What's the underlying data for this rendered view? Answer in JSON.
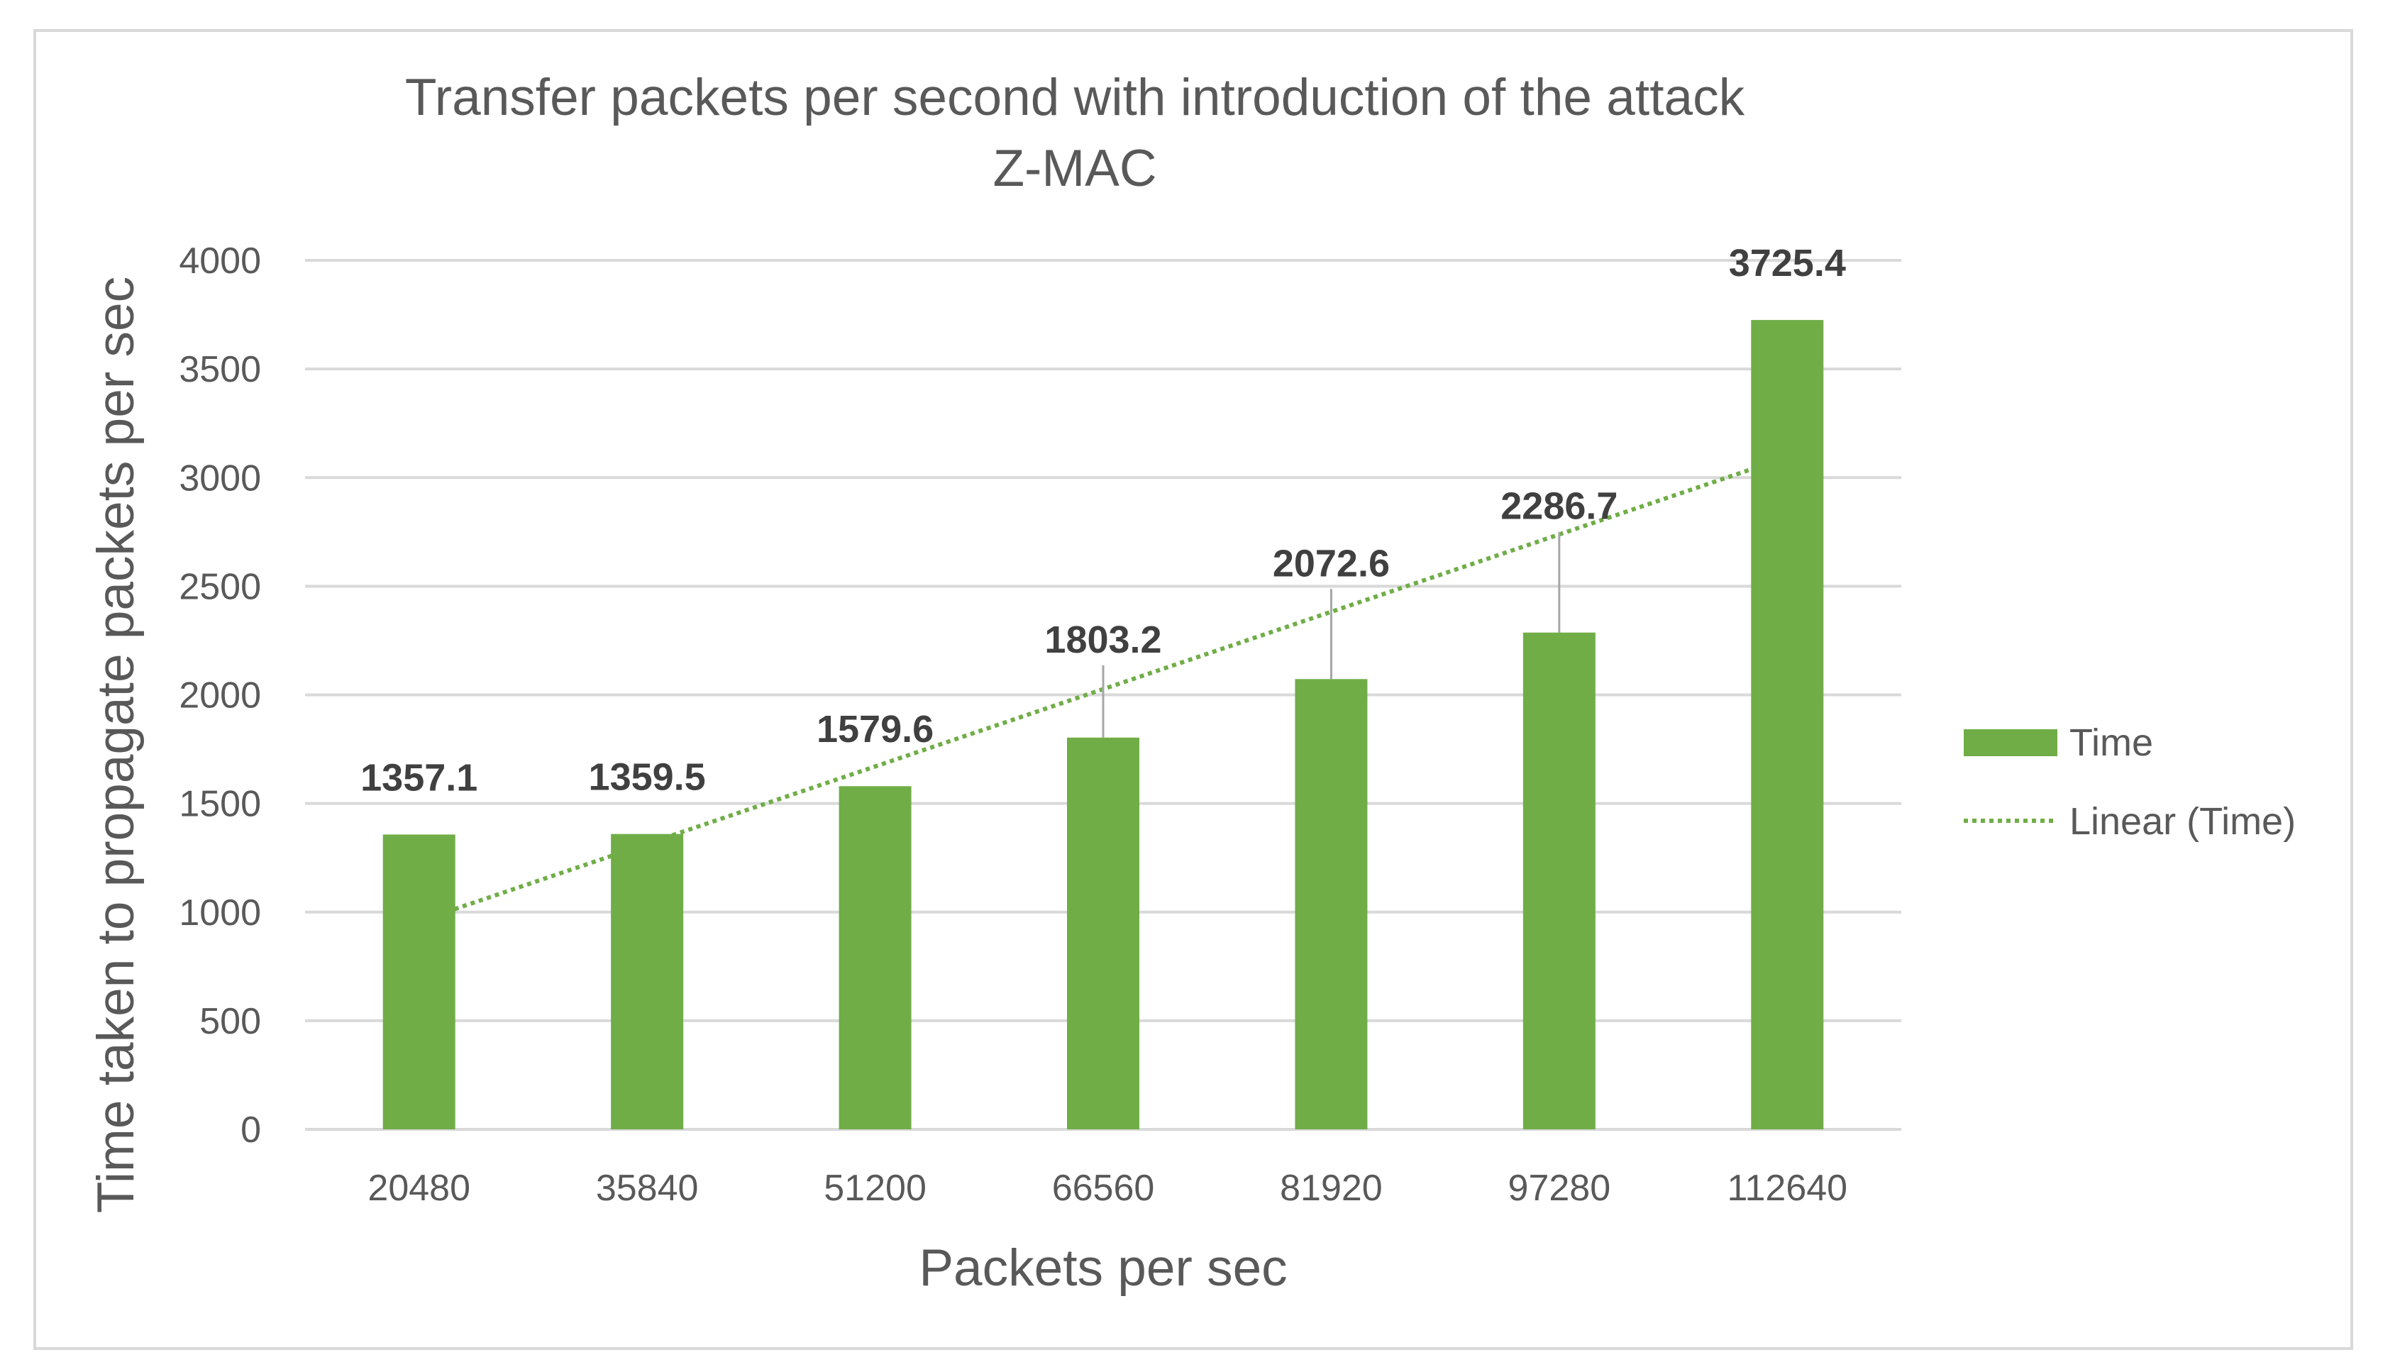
{
  "chart_data": {
    "type": "bar",
    "title": [
      "Transfer packets per second with introduction of the attack",
      "Z-MAC"
    ],
    "xlabel": "Packets per sec",
    "ylabel": "Time taken to propagate packets per sec",
    "categories": [
      "20480",
      "35840",
      "51200",
      "66560",
      "81920",
      "97280",
      "112640"
    ],
    "series": [
      {
        "name": "Time",
        "values": [
          1357.1,
          1359.5,
          1579.6,
          1803.2,
          2072.6,
          2286.7,
          3725.4
        ],
        "color": "#70ad47"
      }
    ],
    "data_labels": [
      "1357.1",
      "1359.5",
      "1579.6",
      "1803.2",
      "2072.6",
      "2286.7",
      "3725.4"
    ],
    "trendline": {
      "name": "Linear (Time)",
      "type": "linear",
      "style": "dotted",
      "color": "#70ad47"
    },
    "ylim": [
      0,
      4000
    ],
    "yticks": [
      0,
      500,
      1000,
      1500,
      2000,
      2500,
      3000,
      3500,
      4000
    ],
    "grid": true,
    "legend_position": "right"
  }
}
